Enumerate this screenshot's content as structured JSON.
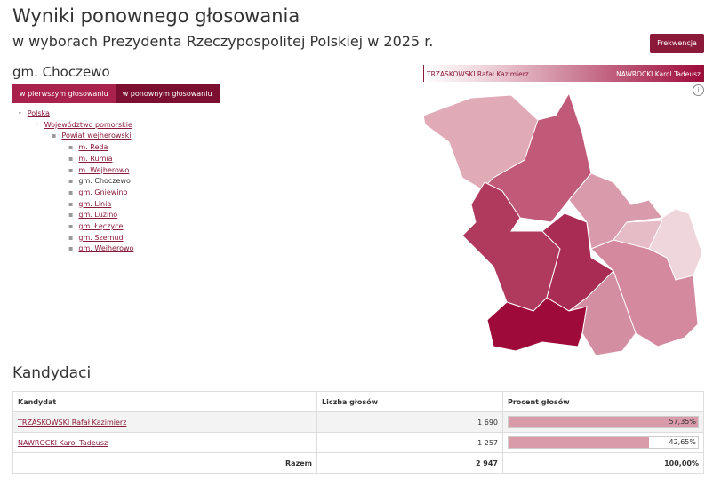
{
  "header": {
    "title": "Wyniki ponownego głosowania",
    "subtitle": "w wyborach Prezydenta Rzeczypospolitej Polskiej w 2025 r."
  },
  "buttons": {
    "turnout": "Frekwencja"
  },
  "area": "gm. Choczewo",
  "tabs": [
    "w pierwszym głosowaniu",
    "w ponownym głosowaniu"
  ],
  "breadcrumb": [
    "Polska",
    "Województwo pomorskie",
    "Powiat wejherowski"
  ],
  "sub_areas": [
    "m. Reda",
    "m. Rumia",
    "m. Wejherowo",
    "gm. Choczewo",
    "gm. Gniewino",
    "gm. Linia",
    "gm. Luzino",
    "gm. Łęczyce",
    "gm. Szemud",
    "gm. Wejherowo"
  ],
  "legend": {
    "left": "TRZASKOWSKI Rafał Kazimierz",
    "right": "NAWROCKI Karol Tadeusz"
  },
  "section_title": "Kandydaci",
  "table": {
    "columns": [
      "Kandydat",
      "Liczba głosów",
      "Procent głosów"
    ],
    "rows": [
      {
        "candidate": "TRZASKOWSKI Rafał Kazimierz",
        "votes": "1 690",
        "percent": {
          "value": 57.35,
          "label": "57,35%"
        }
      },
      {
        "candidate": "NAWROCKI Karol Tadeusz",
        "votes": "1 257",
        "percent": {
          "value": 42.65,
          "label": "42,65%"
        }
      }
    ],
    "total": {
      "label": "Razem",
      "votes": "2 947",
      "percent": "100,00%"
    }
  }
}
